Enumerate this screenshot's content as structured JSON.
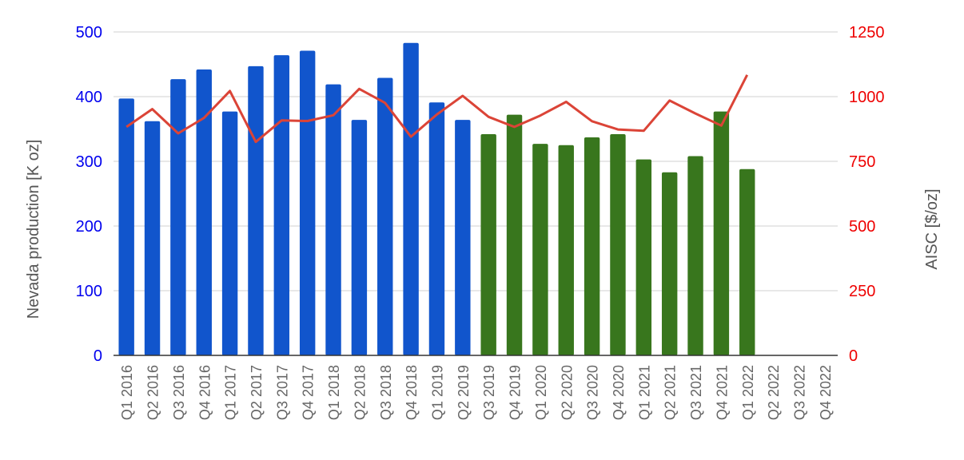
{
  "chart_data": {
    "type": "bar",
    "categories": [
      "Q1 2016",
      "Q2 2016",
      "Q3 2016",
      "Q4 2016",
      "Q1 2017",
      "Q2 2017",
      "Q3 2017",
      "Q4 2017",
      "Q1 2018",
      "Q2 2018",
      "Q3 2018",
      "Q4 2018",
      "Q1 2019",
      "Q2 2019",
      "Q3 2019",
      "Q4 2019",
      "Q1 2020",
      "Q2 2020",
      "Q3 2020",
      "Q4 2020",
      "Q1 2021",
      "Q2 2021",
      "Q3 2021",
      "Q4 2021",
      "Q1 2022",
      "Q2 2022",
      "Q3 2022",
      "Q4 2022"
    ],
    "series": [
      {
        "values": [
          397,
          362,
          427,
          442,
          377,
          447,
          464,
          471,
          419,
          364,
          429,
          483,
          391,
          364,
          342,
          372,
          327,
          325,
          337,
          342,
          303,
          283,
          308,
          377,
          288,
          null,
          null,
          null
        ],
        "color": "#1155cc",
        "color_from_index_14": "#38761d",
        "axis": "left"
      },
      {
        "values": [
          883,
          952,
          858,
          918,
          1022,
          825,
          908,
          906,
          928,
          1030,
          976,
          845,
          931,
          1003,
          922,
          883,
          927,
          980,
          905,
          873,
          868,
          985,
          935,
          888,
          1084,
          null,
          null,
          null
        ],
        "color": "#db4437",
        "axis": "right",
        "type": "line"
      }
    ],
    "ylabel": "Nevada production [K oz]",
    "y2label": "AISC [$/oz]",
    "ylim": [
      0,
      500
    ],
    "y2lim": [
      0,
      1250
    ],
    "yticks": [
      "0",
      "100",
      "200",
      "300",
      "400",
      "500"
    ],
    "y2ticks": [
      "0",
      "250",
      "500",
      "750",
      "1000",
      "1250"
    ],
    "left_tick_color": "#0000ee",
    "right_tick_color": "#ee0000",
    "grid": true,
    "legend": "none"
  }
}
